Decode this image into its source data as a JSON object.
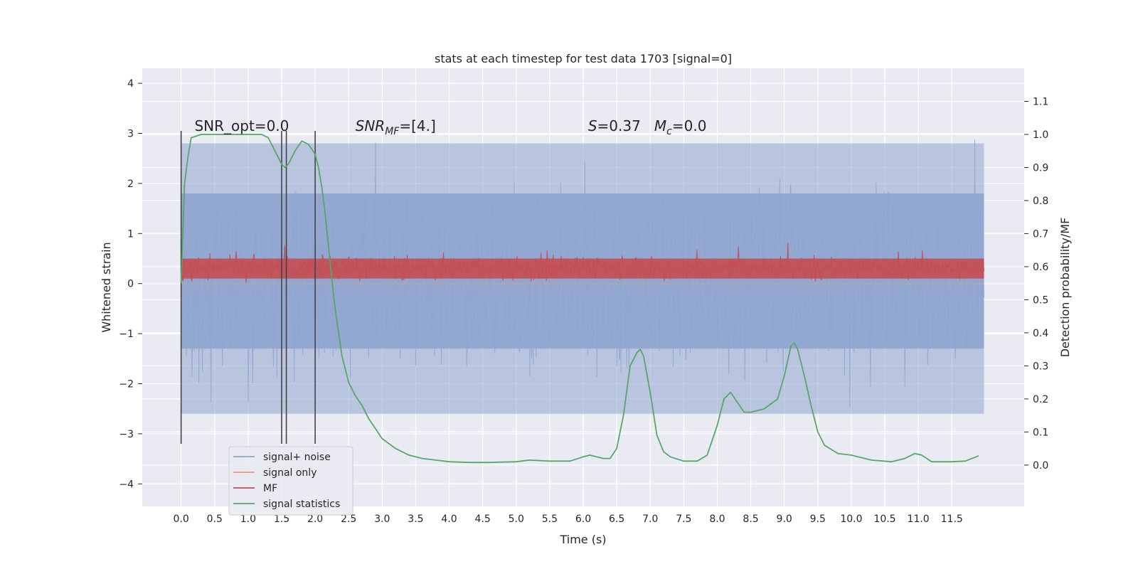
{
  "chart_data": {
    "type": "line",
    "title": "stats at each timestep for test data 1703 [signal=0]",
    "xlabel": "Time (s)",
    "ylabel": "Whitened strain",
    "y2label": "Detection probability/MF",
    "xlim": [
      -0.58,
      12.58
    ],
    "ylim": [
      -4.45,
      4.3
    ],
    "y2lim": [
      -0.125,
      1.2
    ],
    "xticks": [
      "0.0",
      "0.5",
      "1.0",
      "1.5",
      "2.0",
      "2.5",
      "3.0",
      "3.5",
      "4.0",
      "4.5",
      "5.0",
      "5.5",
      "6.0",
      "6.5",
      "7.0",
      "7.5",
      "8.0",
      "8.5",
      "9.0",
      "9.5",
      "10.0",
      "10.5",
      "11.0",
      "11.5"
    ],
    "yticks": [
      "4",
      "3",
      "2",
      "1",
      "0",
      "−1",
      "−2",
      "−3",
      "−4"
    ],
    "y2ticks": [
      "1.1",
      "1.0",
      "0.9",
      "0.8",
      "0.7",
      "0.6",
      "0.5",
      "0.4",
      "0.3",
      "0.2",
      "0.1",
      "0.0"
    ],
    "grid": true,
    "legend_position": "lower-left",
    "annotations": [
      {
        "text": "SNR_opt=0.0",
        "x": 0.2,
        "y": 3.05
      },
      {
        "text": "SNR_MF=[4.]",
        "x": 2.6,
        "y": 3.05,
        "main": "SNR",
        "sub": "MF",
        "rest": "=[4.]"
      },
      {
        "text": "S=0.37   M_c=0.0",
        "x": 5.6,
        "y": 3.05,
        "s": "S",
        "s_rest": "=0.37   ",
        "m": "M",
        "m_sub": "c",
        "m_rest": "=0.0"
      }
    ],
    "vlines": [
      0.0,
      1.5,
      1.57,
      2.0
    ],
    "vline_ylim": [
      -3.2,
      3.05
    ],
    "noise_envelope": {
      "x_start": 0.0,
      "x_end": 11.98,
      "inner": [
        -1.3,
        1.8
      ],
      "outer": [
        -2.6,
        2.8
      ]
    },
    "mf_band": {
      "x_start": 0.0,
      "x_end": 11.98,
      "low": 0.05,
      "high": 0.55
    },
    "series": [
      {
        "name": "signal+ noise",
        "color": "#8fa5cf",
        "kind": "noise"
      },
      {
        "name": "signal only",
        "color": "#e59c80",
        "kind": "flat"
      },
      {
        "name": "MF",
        "color": "#c44e52",
        "kind": "mf"
      },
      {
        "name": "signal statistics",
        "color": "#55a868",
        "kind": "line",
        "axis": "y2",
        "x": [
          0.0,
          0.05,
          0.1,
          0.15,
          0.3,
          0.5,
          0.8,
          1.0,
          1.2,
          1.3,
          1.4,
          1.5,
          1.55,
          1.6,
          1.7,
          1.8,
          1.9,
          2.0,
          2.05,
          2.1,
          2.15,
          2.2,
          2.25,
          2.3,
          2.35,
          2.4,
          2.5,
          2.6,
          2.7,
          2.8,
          2.9,
          3.0,
          3.2,
          3.4,
          3.6,
          3.8,
          4.0,
          4.3,
          4.6,
          5.0,
          5.2,
          5.5,
          5.8,
          6.0,
          6.1,
          6.3,
          6.4,
          6.5,
          6.6,
          6.7,
          6.8,
          6.85,
          6.9,
          7.0,
          7.1,
          7.2,
          7.3,
          7.5,
          7.7,
          7.85,
          8.0,
          8.1,
          8.2,
          8.3,
          8.4,
          8.5,
          8.7,
          8.9,
          9.0,
          9.1,
          9.15,
          9.2,
          9.3,
          9.4,
          9.5,
          9.6,
          9.8,
          10.0,
          10.3,
          10.6,
          10.8,
          10.95,
          11.05,
          11.2,
          11.5,
          11.7,
          11.9
        ],
        "y": [
          0.55,
          0.85,
          0.93,
          0.99,
          1.0,
          1.0,
          1.0,
          1.0,
          1.0,
          0.99,
          0.95,
          0.91,
          0.9,
          0.91,
          0.95,
          0.98,
          0.97,
          0.94,
          0.9,
          0.84,
          0.76,
          0.66,
          0.56,
          0.47,
          0.4,
          0.33,
          0.25,
          0.21,
          0.18,
          0.14,
          0.11,
          0.08,
          0.05,
          0.03,
          0.02,
          0.015,
          0.01,
          0.008,
          0.008,
          0.01,
          0.015,
          0.012,
          0.012,
          0.025,
          0.03,
          0.02,
          0.02,
          0.05,
          0.15,
          0.3,
          0.34,
          0.35,
          0.33,
          0.22,
          0.09,
          0.04,
          0.025,
          0.012,
          0.012,
          0.03,
          0.12,
          0.2,
          0.22,
          0.19,
          0.16,
          0.16,
          0.17,
          0.2,
          0.27,
          0.36,
          0.37,
          0.35,
          0.27,
          0.18,
          0.1,
          0.06,
          0.035,
          0.03,
          0.015,
          0.01,
          0.02,
          0.035,
          0.03,
          0.01,
          0.01,
          0.012,
          0.028
        ]
      }
    ]
  }
}
